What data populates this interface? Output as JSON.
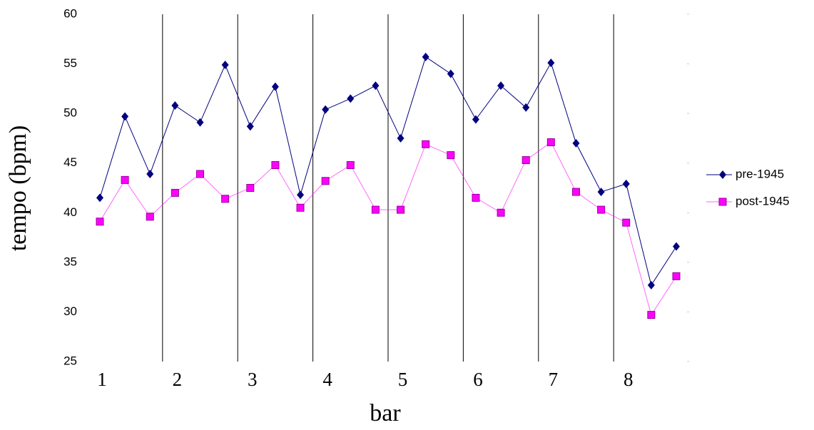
{
  "chart_data": {
    "type": "line",
    "x_label": "bar",
    "y_label": "tempo (bpm)",
    "categories": [
      "1",
      null,
      null,
      "2",
      null,
      null,
      "3",
      null,
      null,
      "4",
      null,
      null,
      "5",
      null,
      null,
      "6",
      null,
      null,
      "7",
      null,
      null,
      "8",
      null,
      null
    ],
    "series": [
      {
        "name": "pre-1945",
        "color": "#000080",
        "marker": "diamond",
        "values": [
          41.5,
          49.7,
          43.9,
          50.8,
          49.1,
          54.9,
          48.7,
          52.7,
          41.8,
          50.4,
          51.5,
          52.8,
          47.5,
          55.7,
          54.0,
          49.4,
          52.8,
          50.6,
          55.1,
          47.0,
          42.1,
          42.9,
          32.7,
          36.6
        ]
      },
      {
        "name": "post-1945",
        "color": "#ff00ff",
        "marker": "square",
        "values": [
          39.1,
          43.3,
          39.6,
          42.0,
          43.9,
          41.4,
          42.5,
          44.8,
          40.5,
          43.2,
          44.8,
          40.3,
          40.3,
          46.9,
          45.8,
          41.5,
          40.0,
          45.3,
          47.1,
          42.1,
          40.3,
          39.0,
          29.7,
          33.6
        ]
      }
    ],
    "ylim": [
      25,
      60
    ],
    "yticks": [
      25,
      30,
      35,
      40,
      45,
      50,
      55,
      60
    ],
    "grid": false,
    "legend": "right"
  }
}
